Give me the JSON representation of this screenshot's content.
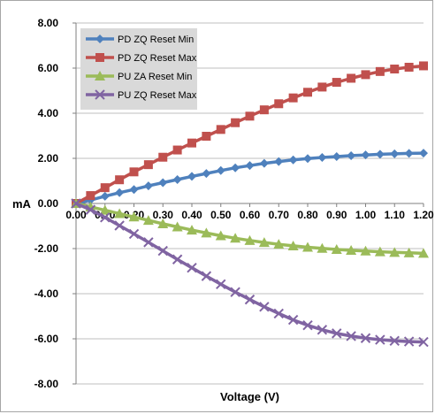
{
  "chart_data": {
    "type": "line",
    "title": "",
    "xlabel": "Voltage (V)",
    "ylabel": "mA",
    "xlim": [
      0,
      1.2
    ],
    "ylim": [
      -8,
      8
    ],
    "x_ticks": [
      "0.00",
      "0.10",
      "0.20",
      "0.30",
      "0.40",
      "0.50",
      "0.60",
      "0.70",
      "0.80",
      "0.90",
      "1.00",
      "1.10",
      "1.20"
    ],
    "y_ticks": [
      "8.00",
      "6.00",
      "4.00",
      "2.00",
      "0.00",
      "-2.00",
      "-4.00",
      "-6.00",
      "-8.00"
    ],
    "grid": "horizontal",
    "legend_position": "top-left",
    "x": [
      0.0,
      0.05,
      0.1,
      0.15,
      0.2,
      0.25,
      0.3,
      0.35,
      0.4,
      0.45,
      0.5,
      0.55,
      0.6,
      0.65,
      0.7,
      0.75,
      0.8,
      0.85,
      0.9,
      0.95,
      1.0,
      1.05,
      1.1,
      1.15,
      1.2
    ],
    "series": [
      {
        "name": "PD ZQ Reset Min",
        "color": "#4f81bd",
        "marker": "diamond",
        "values": [
          0.0,
          0.15,
          0.32,
          0.48,
          0.62,
          0.78,
          0.92,
          1.06,
          1.2,
          1.33,
          1.46,
          1.58,
          1.68,
          1.78,
          1.86,
          1.93,
          1.99,
          2.04,
          2.08,
          2.12,
          2.15,
          2.18,
          2.2,
          2.22,
          2.23
        ]
      },
      {
        "name": "PD ZQ Reset Max",
        "color": "#c0504d",
        "marker": "square",
        "values": [
          0.0,
          0.35,
          0.7,
          1.05,
          1.4,
          1.72,
          2.05,
          2.37,
          2.68,
          2.98,
          3.28,
          3.58,
          3.87,
          4.15,
          4.42,
          4.68,
          4.93,
          5.16,
          5.37,
          5.55,
          5.71,
          5.85,
          5.96,
          6.04,
          6.1
        ]
      },
      {
        "name": "PU ZA Reset Min",
        "color": "#9bbb59",
        "marker": "triangle",
        "values": [
          0.0,
          -0.15,
          -0.3,
          -0.45,
          -0.6,
          -0.75,
          -0.9,
          -1.04,
          -1.18,
          -1.31,
          -1.43,
          -1.54,
          -1.64,
          -1.73,
          -1.81,
          -1.88,
          -1.94,
          -1.99,
          -2.04,
          -2.08,
          -2.11,
          -2.14,
          -2.17,
          -2.19,
          -2.21
        ]
      },
      {
        "name": "PU ZQ Reset Max",
        "color": "#8064a2",
        "marker": "x",
        "values": [
          0.0,
          -0.28,
          -0.62,
          -0.98,
          -1.35,
          -1.72,
          -2.1,
          -2.48,
          -2.85,
          -3.22,
          -3.58,
          -3.93,
          -4.26,
          -4.58,
          -4.88,
          -5.16,
          -5.4,
          -5.6,
          -5.76,
          -5.88,
          -5.97,
          -6.04,
          -6.09,
          -6.12,
          -6.14
        ]
      }
    ]
  }
}
